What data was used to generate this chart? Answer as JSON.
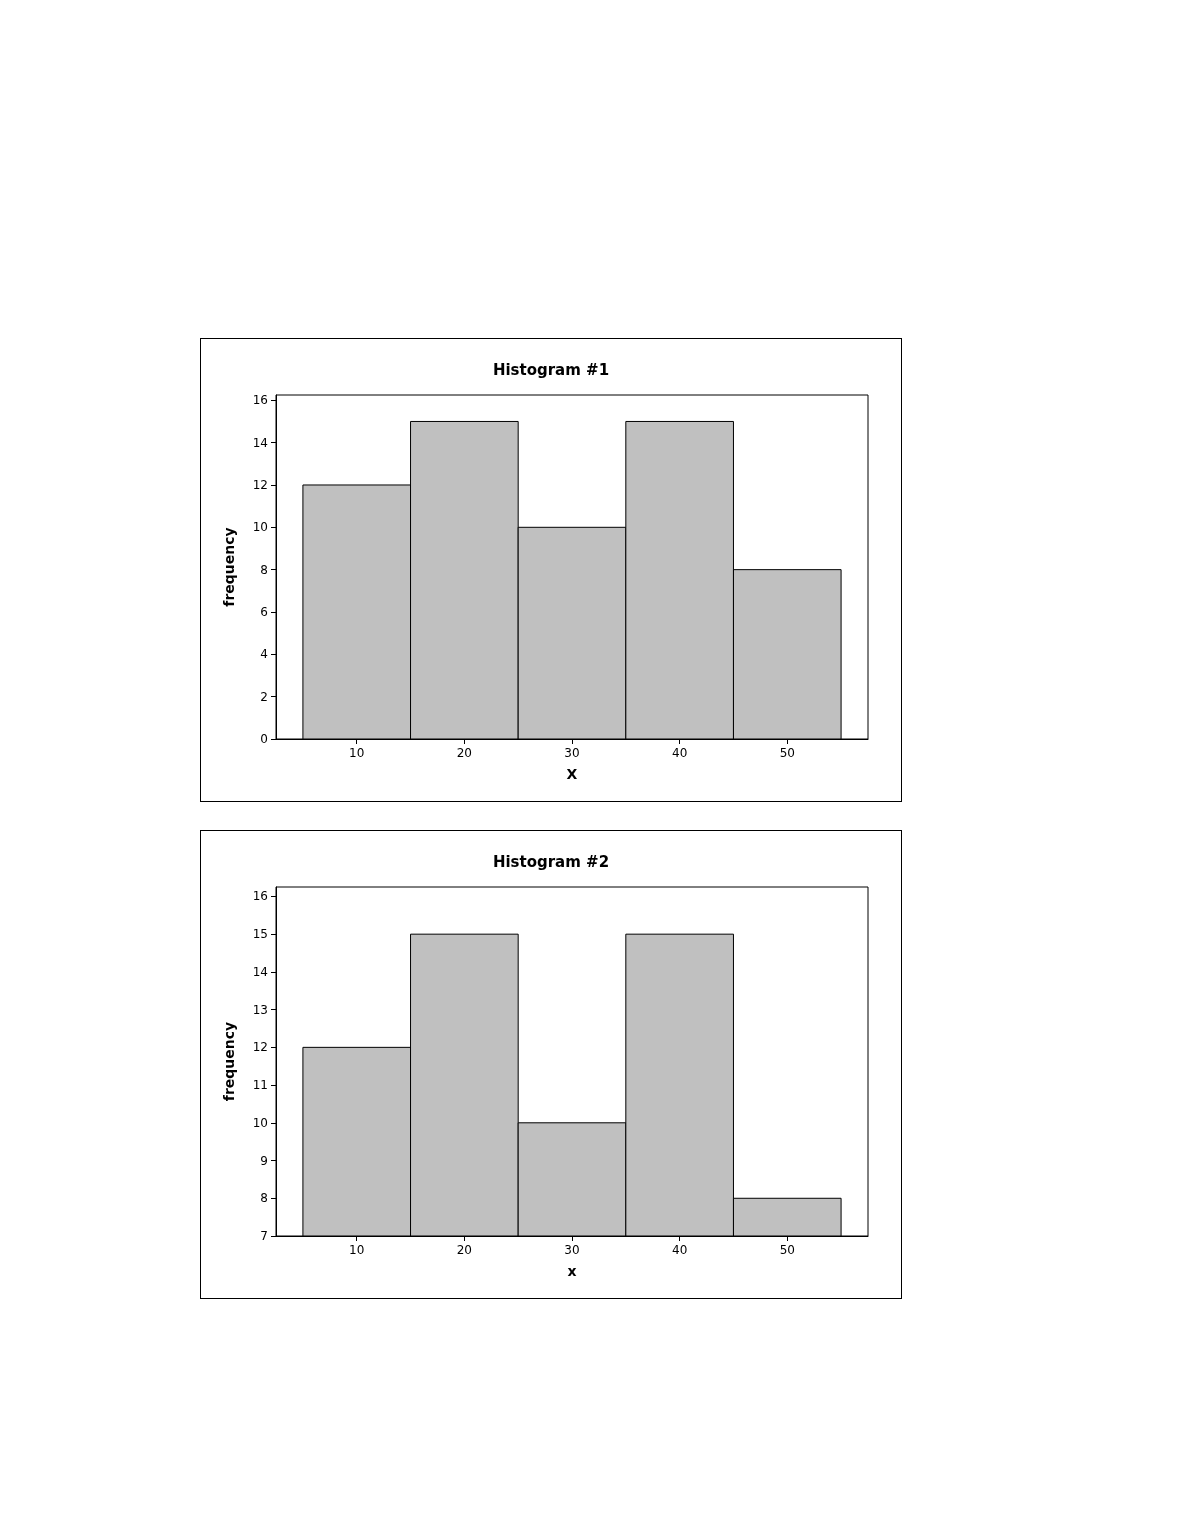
{
  "chart_data": [
    {
      "type": "histogram",
      "title": "Histogram #1",
      "xlabel": "X",
      "ylabel": "frequency",
      "bins": [
        5,
        15,
        25,
        35,
        45,
        55
      ],
      "values": [
        12,
        15,
        10,
        15,
        8
      ],
      "color": "#c0c0c0",
      "xlim": [
        2.5,
        57.5
      ],
      "ylim": [
        0,
        16.25
      ],
      "xticks": [
        10,
        20,
        30,
        40,
        50
      ],
      "yticks": [
        0,
        2,
        4,
        6,
        8,
        10,
        12,
        14,
        16
      ]
    },
    {
      "type": "histogram",
      "title": "Histogram #2",
      "xlabel": "x",
      "ylabel": "frequency",
      "bins": [
        5,
        15,
        25,
        35,
        45,
        55
      ],
      "values": [
        12,
        15,
        10,
        15,
        8
      ],
      "color": "#c0c0c0",
      "xlim": [
        2.5,
        57.5
      ],
      "ylim": [
        7,
        16.25
      ],
      "xticks": [
        10,
        20,
        30,
        40,
        50
      ],
      "yticks": [
        7,
        8,
        9,
        10,
        11,
        12,
        13,
        14,
        15,
        16
      ]
    }
  ]
}
